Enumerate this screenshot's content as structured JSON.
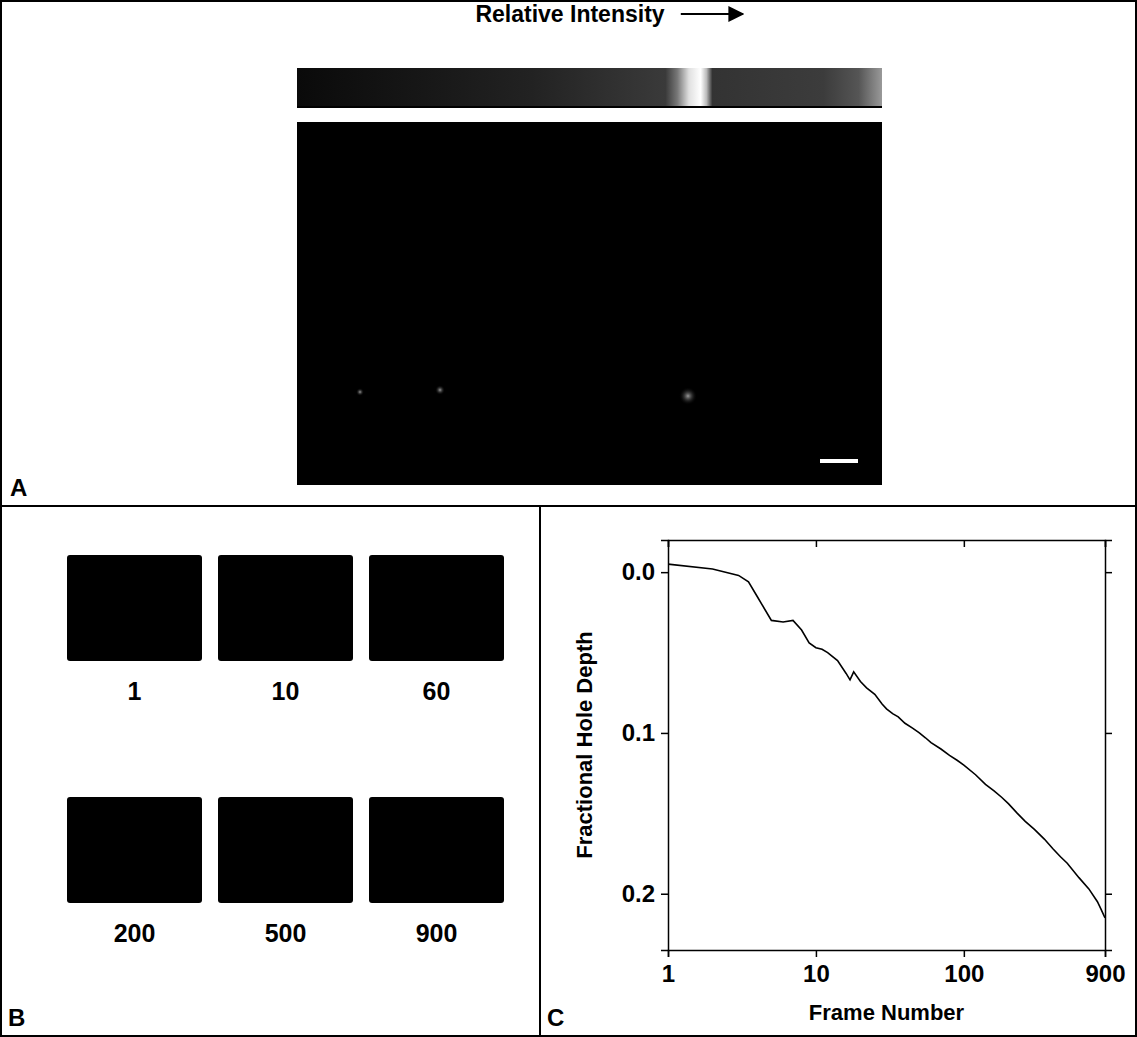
{
  "chart_data": {
    "type": "line",
    "xlabel": "Frame Number",
    "ylabel": "Fractional Hole Depth",
    "x": [
      1,
      2,
      3,
      3.5,
      4,
      5,
      6,
      7,
      8,
      9,
      10,
      11,
      12,
      14,
      16,
      17,
      18,
      20,
      22,
      25,
      28,
      30,
      33,
      36,
      40,
      45,
      50,
      55,
      60,
      70,
      80,
      90,
      100,
      120,
      140,
      160,
      180,
      200,
      230,
      260,
      300,
      350,
      400,
      450,
      500,
      600,
      700,
      800,
      850,
      900
    ],
    "values": [
      -0.005,
      -0.002,
      0.002,
      0.006,
      0.015,
      0.03,
      0.031,
      0.03,
      0.036,
      0.044,
      0.047,
      0.048,
      0.05,
      0.055,
      0.063,
      0.067,
      0.062,
      0.068,
      0.072,
      0.076,
      0.082,
      0.085,
      0.088,
      0.09,
      0.094,
      0.097,
      0.1,
      0.103,
      0.106,
      0.11,
      0.114,
      0.117,
      0.12,
      0.126,
      0.132,
      0.136,
      0.14,
      0.144,
      0.15,
      0.155,
      0.16,
      0.166,
      0.172,
      0.177,
      0.181,
      0.19,
      0.197,
      0.205,
      0.21,
      0.215
    ],
    "color": "#000000",
    "log": "x",
    "xlim": [
      1,
      900
    ],
    "xticks": [
      1,
      10,
      100,
      900
    ],
    "ylim": [
      0.235,
      -0.02
    ],
    "yticks": [
      {
        "value": 0,
        "label": "0.0"
      },
      0.1,
      0.2
    ]
  },
  "panel_a": {
    "label": "A",
    "colorbar_label": "Relative Intensity"
  },
  "panel_b": {
    "label": "B",
    "frame_numbers": [
      1,
      10,
      60,
      200,
      500,
      900
    ]
  },
  "panel_c": {
    "label": "C"
  }
}
